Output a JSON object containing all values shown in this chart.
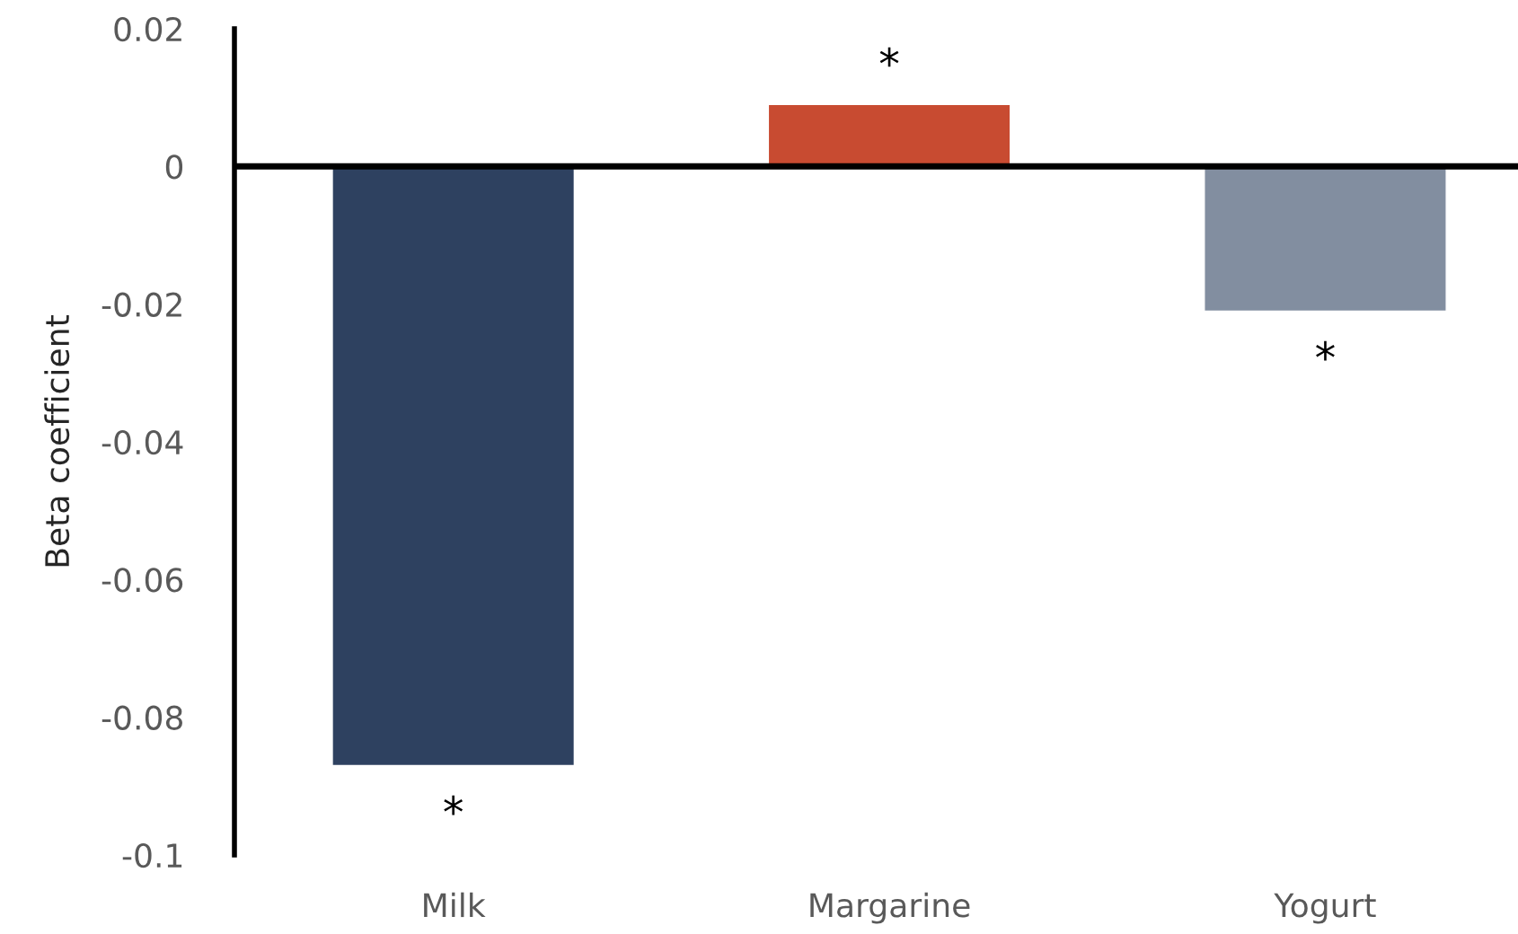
{
  "chart_data": {
    "type": "bar",
    "ylabel": "Beta coefficient",
    "categories": [
      "Milk",
      "Margarine",
      "Yogurt"
    ],
    "values": [
      -0.087,
      0.009,
      -0.021
    ],
    "colors": [
      "#2e4160",
      "#c84b31",
      "#828ea0"
    ],
    "ylim": [
      -0.1,
      0.02
    ],
    "yticks": [
      -0.1,
      -0.08,
      -0.06,
      -0.04,
      -0.02,
      0,
      0.02
    ],
    "grid": false,
    "legend": false,
    "ref_lines": [
      {
        "axis": "y",
        "value": 0,
        "color": "#000000"
      }
    ],
    "value_labels": [
      "*",
      "*",
      "*"
    ]
  }
}
